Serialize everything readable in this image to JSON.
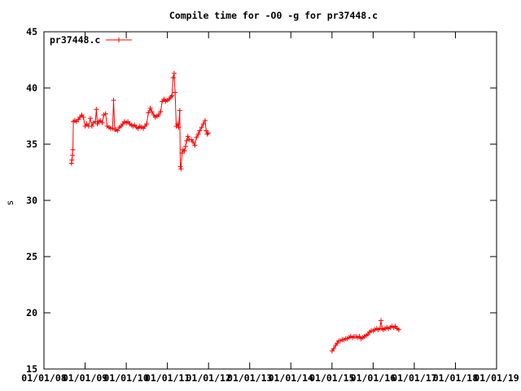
{
  "chart_data": {
    "type": "line",
    "title": "Compile time for -O0 -g for pr37448.c",
    "xlabel": "",
    "ylabel": "s",
    "xlim": [
      "2008-01-01",
      "2018-12-31"
    ],
    "ylim": [
      15,
      45
    ],
    "yticks": [
      15,
      20,
      25,
      30,
      35,
      40,
      45
    ],
    "xtick_labels": [
      "01/01/08",
      "01/01/09",
      "01/01/10",
      "01/01/11",
      "01/01/12",
      "01/01/13",
      "01/01/14",
      "01/01/15",
      "01/01/16",
      "01/01/17",
      "01/01/18",
      "01/01/19"
    ],
    "grid": false,
    "legend_position": "top-left",
    "series": [
      {
        "name": "pr37448.c",
        "color": "#ff0000",
        "marker": "plus",
        "points": [
          [
            "2008-09-01",
            33.3
          ],
          [
            "2008-09-05",
            33.6
          ],
          [
            "2008-09-10",
            34.0
          ],
          [
            "2008-09-14",
            34.5
          ],
          [
            "2008-09-18",
            37.0
          ],
          [
            "2008-10-01",
            37.1
          ],
          [
            "2008-10-15",
            37.0
          ],
          [
            "2008-11-01",
            37.2
          ],
          [
            "2008-11-15",
            37.4
          ],
          [
            "2008-12-01",
            37.6
          ],
          [
            "2008-12-15",
            37.4
          ],
          [
            "2009-01-01",
            36.6
          ],
          [
            "2009-01-15",
            36.8
          ],
          [
            "2009-02-01",
            36.6
          ],
          [
            "2009-02-15",
            37.3
          ],
          [
            "2009-03-01",
            36.6
          ],
          [
            "2009-03-15",
            36.9
          ],
          [
            "2009-04-01",
            37.0
          ],
          [
            "2009-04-10",
            38.1
          ],
          [
            "2009-04-20",
            36.8
          ],
          [
            "2009-05-01",
            37.0
          ],
          [
            "2009-05-15",
            37.1
          ],
          [
            "2009-06-01",
            36.9
          ],
          [
            "2009-06-15",
            37.6
          ],
          [
            "2009-07-01",
            37.7
          ],
          [
            "2009-07-15",
            36.6
          ],
          [
            "2009-08-01",
            36.5
          ],
          [
            "2009-08-15",
            36.4
          ],
          [
            "2009-09-01",
            36.4
          ],
          [
            "2009-09-10",
            38.9
          ],
          [
            "2009-09-20",
            36.3
          ],
          [
            "2009-10-01",
            36.3
          ],
          [
            "2009-10-15",
            36.2
          ],
          [
            "2009-11-01",
            36.5
          ],
          [
            "2009-11-15",
            36.6
          ],
          [
            "2009-12-01",
            36.8
          ],
          [
            "2009-12-15",
            37.0
          ],
          [
            "2010-01-01",
            36.9
          ],
          [
            "2010-01-15",
            37.0
          ],
          [
            "2010-02-01",
            36.8
          ],
          [
            "2010-02-15",
            36.7
          ],
          [
            "2010-03-01",
            36.6
          ],
          [
            "2010-03-15",
            36.7
          ],
          [
            "2010-04-01",
            36.5
          ],
          [
            "2010-04-15",
            36.4
          ],
          [
            "2010-05-01",
            36.6
          ],
          [
            "2010-05-15",
            36.5
          ],
          [
            "2010-06-01",
            36.4
          ],
          [
            "2010-06-15",
            36.6
          ],
          [
            "2010-07-01",
            36.8
          ],
          [
            "2010-07-15",
            37.8
          ],
          [
            "2010-08-01",
            38.2
          ],
          [
            "2010-08-15",
            37.9
          ],
          [
            "2010-09-01",
            37.6
          ],
          [
            "2010-09-15",
            37.4
          ],
          [
            "2010-10-01",
            37.5
          ],
          [
            "2010-10-15",
            37.6
          ],
          [
            "2010-11-01",
            37.9
          ],
          [
            "2010-11-15",
            38.8
          ],
          [
            "2010-12-01",
            39.0
          ],
          [
            "2010-12-15",
            38.8
          ],
          [
            "2011-01-01",
            38.9
          ],
          [
            "2011-01-15",
            39.0
          ],
          [
            "2011-02-01",
            39.2
          ],
          [
            "2011-02-10",
            39.3
          ],
          [
            "2011-02-20",
            40.9
          ],
          [
            "2011-03-01",
            41.3
          ],
          [
            "2011-03-10",
            39.6
          ],
          [
            "2011-03-20",
            36.6
          ],
          [
            "2011-04-01",
            36.8
          ],
          [
            "2011-04-10",
            36.5
          ],
          [
            "2011-04-20",
            38.0
          ],
          [
            "2011-04-25",
            33.0
          ],
          [
            "2011-05-01",
            32.8
          ],
          [
            "2011-05-10",
            34.2
          ],
          [
            "2011-05-20",
            34.5
          ],
          [
            "2011-06-01",
            34.4
          ],
          [
            "2011-06-10",
            34.8
          ],
          [
            "2011-06-20",
            35.3
          ],
          [
            "2011-07-01",
            35.7
          ],
          [
            "2011-07-15",
            35.4
          ],
          [
            "2011-08-01",
            35.4
          ],
          [
            "2011-08-15",
            35.2
          ],
          [
            "2011-09-01",
            34.9
          ],
          [
            "2011-09-15",
            35.6
          ],
          [
            "2011-10-01",
            35.9
          ],
          [
            "2011-10-15",
            36.2
          ],
          [
            "2011-11-01",
            36.5
          ],
          [
            "2011-11-15",
            36.8
          ],
          [
            "2011-12-01",
            37.1
          ],
          [
            "2011-12-10",
            36.2
          ],
          [
            "2011-12-20",
            35.9
          ],
          [
            "2011-12-28",
            36.0
          ],
          [
            "2015-01-01",
            16.6
          ],
          [
            "2015-01-15",
            16.8
          ],
          [
            "2015-02-01",
            17.1
          ],
          [
            "2015-02-15",
            17.3
          ],
          [
            "2015-03-01",
            17.5
          ],
          [
            "2015-03-15",
            17.5
          ],
          [
            "2015-04-01",
            17.6
          ],
          [
            "2015-04-15",
            17.6
          ],
          [
            "2015-05-01",
            17.7
          ],
          [
            "2015-05-15",
            17.7
          ],
          [
            "2015-06-01",
            17.8
          ],
          [
            "2015-06-15",
            17.9
          ],
          [
            "2015-07-01",
            17.8
          ],
          [
            "2015-07-15",
            17.9
          ],
          [
            "2015-08-01",
            17.9
          ],
          [
            "2015-08-15",
            17.8
          ],
          [
            "2015-09-01",
            17.9
          ],
          [
            "2015-09-15",
            17.7
          ],
          [
            "2015-10-01",
            17.8
          ],
          [
            "2015-10-15",
            17.9
          ],
          [
            "2015-11-01",
            18.0
          ],
          [
            "2015-11-15",
            18.1
          ],
          [
            "2015-12-01",
            18.3
          ],
          [
            "2015-12-15",
            18.4
          ],
          [
            "2016-01-01",
            18.4
          ],
          [
            "2016-01-15",
            18.5
          ],
          [
            "2016-02-01",
            18.6
          ],
          [
            "2016-02-15",
            18.5
          ],
          [
            "2016-03-01",
            18.6
          ],
          [
            "2016-03-10",
            19.3
          ],
          [
            "2016-03-20",
            18.6
          ],
          [
            "2016-04-01",
            18.5
          ],
          [
            "2016-04-15",
            18.6
          ],
          [
            "2016-05-01",
            18.7
          ],
          [
            "2016-05-15",
            18.6
          ],
          [
            "2016-06-01",
            18.7
          ],
          [
            "2016-06-15",
            18.8
          ],
          [
            "2016-07-01",
            18.7
          ],
          [
            "2016-07-15",
            18.8
          ],
          [
            "2016-08-01",
            18.6
          ],
          [
            "2016-08-15",
            18.5
          ]
        ]
      }
    ]
  }
}
